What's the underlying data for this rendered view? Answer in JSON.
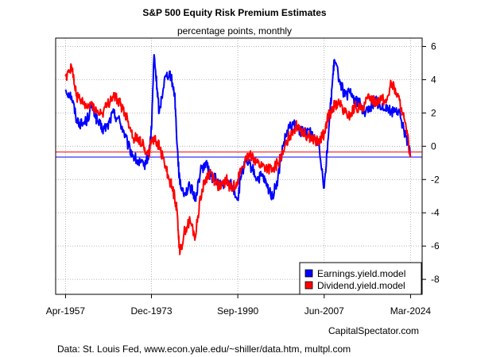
{
  "chart_data": {
    "type": "line",
    "title": "S&P 500 Equity Risk Premium Estimates",
    "subtitle": "percentage points, monthly",
    "x_ticks": [
      "Apr-1957",
      "Dec-1973",
      "Sep-1990",
      "Jun-2007",
      "Mar-2024"
    ],
    "xlim": [
      "1955-05",
      "2026-06"
    ],
    "y_ticks": [
      6,
      4,
      2,
      0,
      -2,
      -4,
      -6,
      -8
    ],
    "ylim": [
      -8.9,
      6.5
    ],
    "grid": true,
    "y_axis_side": "right",
    "legend_position": "bottom-right",
    "series": [
      {
        "name": "Earnings.yield.model",
        "color": "#0000FF",
        "x": [
          "1957-04",
          "1958-06",
          "1959-06",
          "1960-06",
          "1961-06",
          "1962-06",
          "1963-06",
          "1964-06",
          "1965-06",
          "1966-06",
          "1967-06",
          "1968-06",
          "1969-06",
          "1970-06",
          "1971-06",
          "1972-06",
          "1973-06",
          "1973-12",
          "1974-06",
          "1975-01",
          "1975-06",
          "1976-06",
          "1977-06",
          "1978-06",
          "1978-12",
          "1979-06",
          "1980-06",
          "1981-06",
          "1982-06",
          "1983-06",
          "1984-06",
          "1985-06",
          "1986-06",
          "1987-06",
          "1988-06",
          "1989-06",
          "1990-09",
          "1991-06",
          "1992-06",
          "1993-06",
          "1994-06",
          "1995-06",
          "1996-06",
          "1997-06",
          "1998-06",
          "1999-06",
          "2000-06",
          "2001-06",
          "2002-06",
          "2003-06",
          "2004-06",
          "2005-06",
          "2006-06",
          "2007-06",
          "2008-06",
          "2008-12",
          "2009-06",
          "2010-06",
          "2011-06",
          "2012-06",
          "2013-06",
          "2014-06",
          "2015-06",
          "2016-06",
          "2017-06",
          "2018-06",
          "2019-06",
          "2020-06",
          "2021-06",
          "2022-06",
          "2023-06",
          "2024-03"
        ],
        "values": [
          3.4,
          3.0,
          1.6,
          1.3,
          1.6,
          2.4,
          1.5,
          1.0,
          1.2,
          2.0,
          1.7,
          1.0,
          0.0,
          -0.6,
          -1.0,
          -1.2,
          -0.5,
          1.0,
          5.5,
          3.5,
          2.0,
          4.0,
          4.5,
          3.2,
          0.0,
          -2.3,
          -2.8,
          -2.4,
          -3.2,
          -1.5,
          -1.0,
          -1.8,
          -2.0,
          -2.4,
          -2.2,
          -2.3,
          -3.2,
          -1.5,
          -1.0,
          -1.3,
          -2.0,
          -1.8,
          -2.5,
          -3.0,
          -2.0,
          0.0,
          1.0,
          1.3,
          1.0,
          0.8,
          1.0,
          0.6,
          0.2,
          -2.5,
          1.5,
          3.5,
          5.2,
          4.0,
          3.0,
          3.2,
          2.8,
          2.5,
          2.0,
          2.4,
          2.8,
          2.2,
          2.5,
          2.0,
          2.3,
          1.5,
          0.5,
          -0.6
        ]
      },
      {
        "name": "Dividend.yield.model",
        "color": "#FF0000",
        "x": [
          "1957-04",
          "1958-06",
          "1959-06",
          "1960-06",
          "1961-06",
          "1962-06",
          "1963-06",
          "1964-06",
          "1965-06",
          "1966-06",
          "1967-06",
          "1968-06",
          "1969-06",
          "1970-06",
          "1971-06",
          "1972-06",
          "1973-06",
          "1973-12",
          "1974-06",
          "1975-01",
          "1975-06",
          "1976-06",
          "1977-06",
          "1978-06",
          "1978-12",
          "1979-06",
          "1980-06",
          "1981-06",
          "1982-06",
          "1983-06",
          "1984-06",
          "1985-06",
          "1986-06",
          "1987-06",
          "1988-06",
          "1989-06",
          "1990-09",
          "1991-06",
          "1992-06",
          "1993-06",
          "1994-06",
          "1995-06",
          "1996-06",
          "1997-06",
          "1998-06",
          "1999-06",
          "2000-06",
          "2001-06",
          "2002-06",
          "2003-06",
          "2004-06",
          "2005-06",
          "2006-06",
          "2007-06",
          "2008-06",
          "2008-12",
          "2009-06",
          "2010-06",
          "2011-06",
          "2012-06",
          "2013-06",
          "2014-06",
          "2015-06",
          "2016-06",
          "2017-06",
          "2018-06",
          "2019-06",
          "2020-06",
          "2021-06",
          "2022-06",
          "2023-06",
          "2024-03"
        ],
        "values": [
          4.2,
          4.8,
          3.0,
          2.6,
          2.3,
          2.6,
          2.0,
          2.0,
          2.5,
          3.0,
          2.8,
          2.2,
          1.5,
          0.5,
          0.5,
          0.0,
          -0.5,
          0.4,
          0.5,
          0.2,
          0.0,
          -1.0,
          -2.0,
          -3.0,
          -4.0,
          -6.5,
          -5.0,
          -4.5,
          -5.5,
          -3.0,
          -2.0,
          -1.5,
          -2.2,
          -2.5,
          -2.0,
          -2.6,
          -2.0,
          -1.3,
          -0.8,
          -0.5,
          -1.0,
          -1.2,
          -1.3,
          -1.5,
          -1.0,
          -0.5,
          0.5,
          1.0,
          1.3,
          0.8,
          0.6,
          0.4,
          0.2,
          0.8,
          2.0,
          2.0,
          2.5,
          2.5,
          2.0,
          1.8,
          2.4,
          2.2,
          2.6,
          3.0,
          2.6,
          3.0,
          2.6,
          3.8,
          3.2,
          2.3,
          0.8,
          -0.6
        ]
      }
    ],
    "hlines": [
      {
        "value": -0.35,
        "color": "#FF0000"
      },
      {
        "value": -0.65,
        "color": "#0000FF"
      }
    ]
  },
  "credits": {
    "site": "CapitalSpectator.com",
    "source": "Data: St. Louis Fed, www.econ.yale.edu/~shiller/data.htm, multpl.com"
  }
}
